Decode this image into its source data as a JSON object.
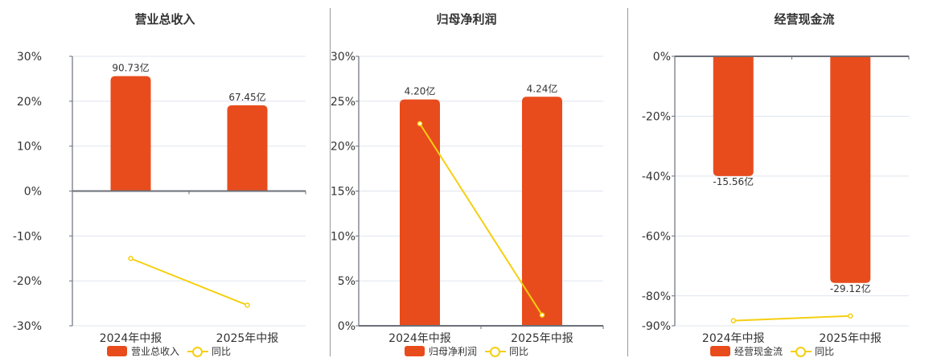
{
  "colors": {
    "bar": "#e84c1c",
    "line": "#f5cf10",
    "grid": "#dfe4ee",
    "axis": "#6b6f78",
    "divider": "#9a9a9a",
    "text": "#333333"
  },
  "legend": {
    "line_label": "同比"
  },
  "chart_data": [
    {
      "type": "bar+line",
      "title": "营业总收入",
      "categories": [
        "2024年中报",
        "2025年中报"
      ],
      "series": [
        {
          "name": "营业总收入",
          "kind": "bar",
          "labels": [
            "90.73亿",
            "67.45亿"
          ],
          "values": [
            90.73,
            67.45
          ],
          "unit": "亿",
          "plotted_pct": [
            25.6,
            19.1
          ]
        },
        {
          "name": "同比",
          "kind": "line",
          "values": [
            -15.0,
            -25.4
          ],
          "unit": "%"
        }
      ],
      "yticks": [
        "30%",
        "20%",
        "10%",
        "0%",
        "-10%",
        "-20%",
        "-30%"
      ],
      "ylim": [
        -30,
        30
      ],
      "zero_line": 0,
      "grid": true,
      "legend_position": "bottom"
    },
    {
      "type": "bar+line",
      "title": "归母净利润",
      "categories": [
        "2024年中报",
        "2025年中报"
      ],
      "series": [
        {
          "name": "归母净利润",
          "kind": "bar",
          "labels": [
            "4.20亿",
            "4.24亿"
          ],
          "values": [
            4.2,
            4.24
          ],
          "unit": "亿",
          "plotted_pct": [
            25.2,
            25.5
          ]
        },
        {
          "name": "同比",
          "kind": "line",
          "values": [
            22.5,
            1.2
          ],
          "unit": "%"
        }
      ],
      "yticks": [
        "30%",
        "25%",
        "20%",
        "15%",
        "10%",
        "5%",
        "0%"
      ],
      "ylim": [
        0,
        30
      ],
      "zero_line": 0,
      "grid": true,
      "legend_position": "bottom"
    },
    {
      "type": "bar+line",
      "title": "经营现金流",
      "categories": [
        "2024年中报",
        "2025年中报"
      ],
      "series": [
        {
          "name": "经营现金流",
          "kind": "bar",
          "labels": [
            "-15.56亿",
            "-29.12亿"
          ],
          "values": [
            -15.56,
            -29.12
          ],
          "unit": "亿",
          "plotted_pct": [
            -40.0,
            -75.7
          ]
        },
        {
          "name": "同比",
          "kind": "line",
          "values": [
            -88.3,
            -86.7
          ],
          "unit": "%"
        }
      ],
      "yticks": [
        "0%",
        "-20%",
        "-40%",
        "-60%",
        "-80%",
        "-90%"
      ],
      "ylim": [
        -90,
        0
      ],
      "zero_line": 0,
      "grid": true,
      "legend_position": "bottom"
    }
  ]
}
